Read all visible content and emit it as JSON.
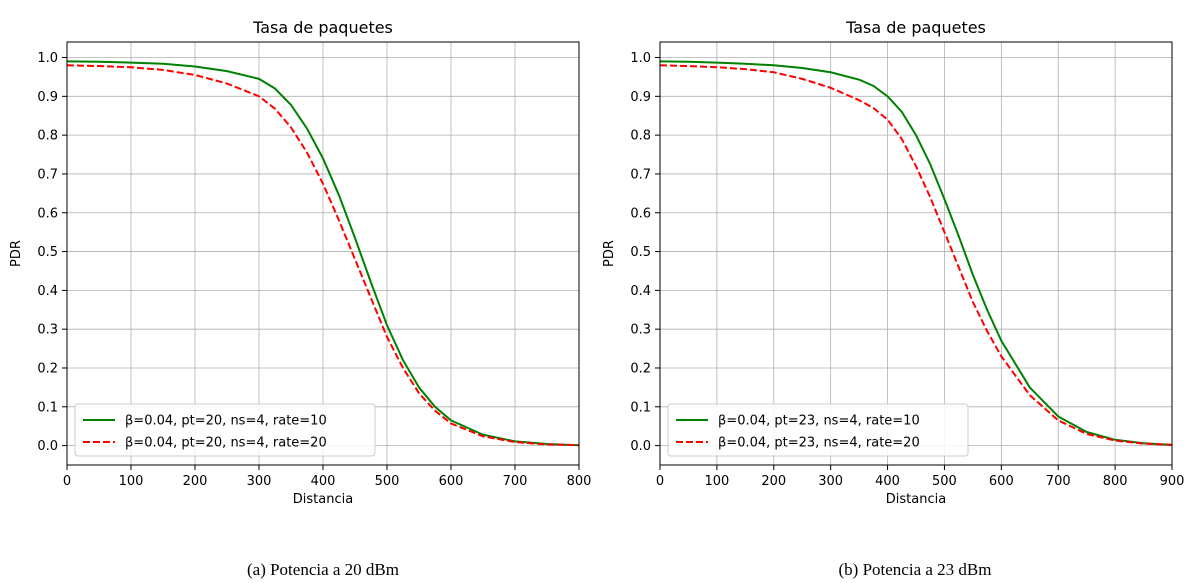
{
  "chart_data": [
    {
      "type": "line",
      "title": "Tasa de paquetes",
      "xlabel": "Distancia",
      "ylabel": "PDR",
      "xlim": [
        0,
        800
      ],
      "ylim": [
        -0.05,
        1.04
      ],
      "xticks": [
        0,
        100,
        200,
        300,
        400,
        500,
        600,
        700,
        800
      ],
      "yticks": [
        0.0,
        0.1,
        0.2,
        0.3,
        0.4,
        0.5,
        0.6,
        0.7,
        0.8,
        0.9,
        1.0
      ],
      "grid": true,
      "legend_position": "lower-left",
      "caption": "(a) Potencia a 20 dBm",
      "series": [
        {
          "name": "β=0.04, pt=20, ns=4, rate=10",
          "color": "#008000",
          "linestyle": "solid",
          "x": [
            0,
            50,
            100,
            150,
            200,
            250,
            300,
            325,
            350,
            375,
            400,
            425,
            450,
            475,
            500,
            525,
            550,
            575,
            600,
            650,
            700,
            750,
            800
          ],
          "y": [
            0.99,
            0.989,
            0.987,
            0.984,
            0.977,
            0.965,
            0.945,
            0.92,
            0.878,
            0.817,
            0.74,
            0.645,
            0.535,
            0.42,
            0.31,
            0.22,
            0.15,
            0.1,
            0.065,
            0.028,
            0.011,
            0.004,
            0.001
          ]
        },
        {
          "name": "β=0.04, pt=20, ns=4, rate=20",
          "color": "#ff0000",
          "linestyle": "dashed",
          "x": [
            0,
            50,
            100,
            150,
            200,
            250,
            300,
            325,
            350,
            375,
            400,
            425,
            450,
            475,
            500,
            525,
            550,
            575,
            600,
            650,
            700,
            750,
            800
          ],
          "y": [
            0.98,
            0.978,
            0.975,
            0.968,
            0.955,
            0.933,
            0.9,
            0.868,
            0.82,
            0.755,
            0.675,
            0.58,
            0.48,
            0.38,
            0.28,
            0.2,
            0.135,
            0.09,
            0.057,
            0.024,
            0.009,
            0.003,
            0.001
          ]
        }
      ]
    },
    {
      "type": "line",
      "title": "Tasa de paquetes",
      "xlabel": "Distancia",
      "ylabel": "PDR",
      "xlim": [
        0,
        900
      ],
      "ylim": [
        -0.05,
        1.04
      ],
      "xticks": [
        0,
        100,
        200,
        300,
        400,
        500,
        600,
        700,
        800,
        900
      ],
      "yticks": [
        0.0,
        0.1,
        0.2,
        0.3,
        0.4,
        0.5,
        0.6,
        0.7,
        0.8,
        0.9,
        1.0
      ],
      "grid": true,
      "legend_position": "lower-left",
      "caption": "(b) Potencia a 23 dBm",
      "series": [
        {
          "name": "β=0.04, pt=23, ns=4, rate=10",
          "color": "#008000",
          "linestyle": "solid",
          "x": [
            0,
            50,
            100,
            150,
            200,
            250,
            300,
            350,
            375,
            400,
            425,
            450,
            475,
            500,
            525,
            550,
            575,
            600,
            650,
            700,
            750,
            800,
            850,
            900
          ],
          "y": [
            0.99,
            0.989,
            0.987,
            0.984,
            0.98,
            0.973,
            0.962,
            0.943,
            0.927,
            0.9,
            0.86,
            0.8,
            0.725,
            0.635,
            0.54,
            0.44,
            0.35,
            0.27,
            0.15,
            0.075,
            0.035,
            0.015,
            0.006,
            0.002
          ]
        },
        {
          "name": "β=0.04, pt=23, ns=4, rate=20",
          "color": "#ff0000",
          "linestyle": "dashed",
          "x": [
            0,
            50,
            100,
            150,
            200,
            250,
            300,
            350,
            375,
            400,
            425,
            450,
            475,
            500,
            525,
            550,
            575,
            600,
            650,
            700,
            750,
            800,
            850,
            900
          ],
          "y": [
            0.98,
            0.978,
            0.975,
            0.97,
            0.962,
            0.945,
            0.922,
            0.89,
            0.87,
            0.84,
            0.79,
            0.72,
            0.64,
            0.55,
            0.46,
            0.37,
            0.295,
            0.23,
            0.13,
            0.065,
            0.03,
            0.013,
            0.005,
            0.002
          ]
        }
      ]
    }
  ]
}
